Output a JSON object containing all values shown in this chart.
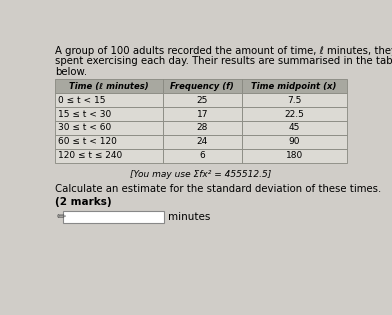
{
  "title_line1": "A group of 100 adults recorded the amount of time, ℓ minutes, they",
  "title_line2": "spent exercising each day. Their results are summarised in the table",
  "title_line3": "below.",
  "col_headers": [
    "Time (ℓ minutes)",
    "Frequency (f)",
    "Time midpoint (x)"
  ],
  "rows": [
    [
      "0 ≤ t < 15",
      "25",
      "7.5"
    ],
    [
      "15 ≤ t < 30",
      "17",
      "22.5"
    ],
    [
      "30 ≤ t < 60",
      "28",
      "45"
    ],
    [
      "60 ≤ t < 120",
      "24",
      "90"
    ],
    [
      "120 ≤ t ≤ 240",
      "6",
      "180"
    ]
  ],
  "hint_text": "[You may use Σfx² = 455512.5]",
  "question_text": "Calculate an estimate for the standard deviation of these times.",
  "marks_text": "(2 marks)",
  "answer_label": "minutes",
  "bg_color": "#d0cdc8",
  "table_header_bg": "#a8a8a0",
  "table_row_bg": "#dcdad4",
  "table_border": "#888880",
  "box_bg": "#ccc9c2"
}
